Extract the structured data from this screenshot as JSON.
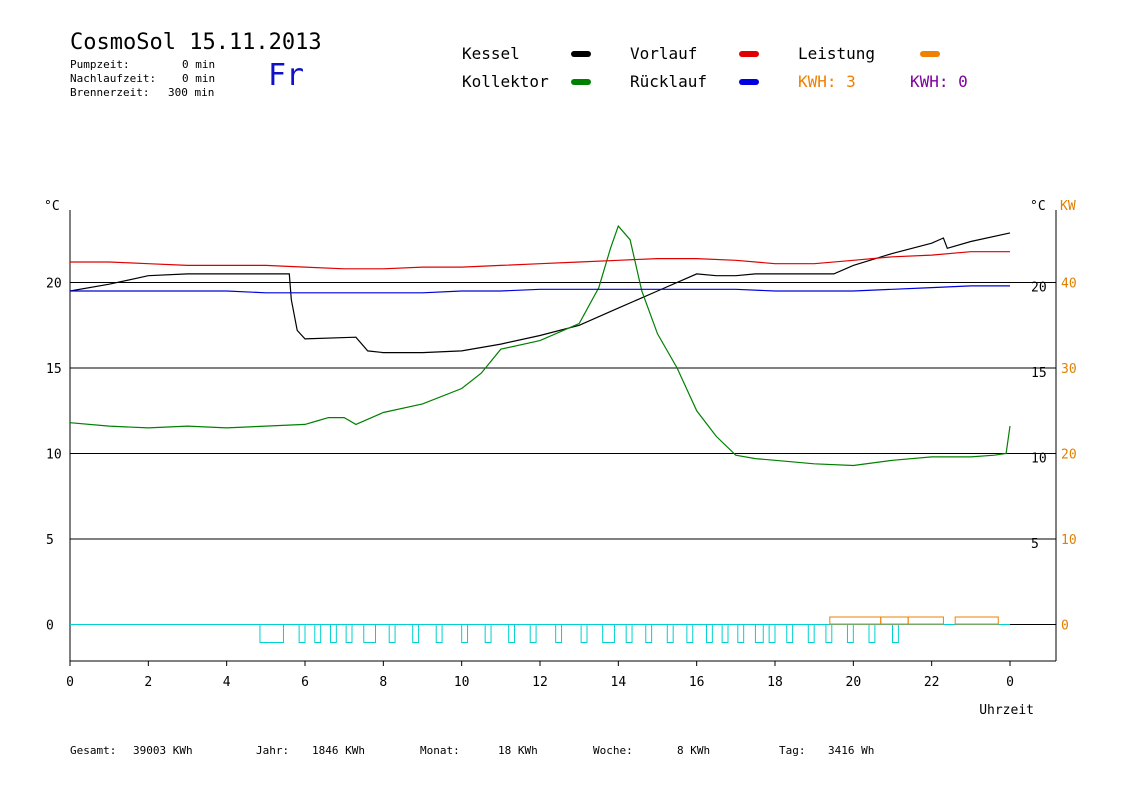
{
  "header": {
    "title": "CosmoSol 15.11.2013",
    "pump_label": "Pumpzeit:",
    "pump_value": "0 min",
    "nachlauf_label": "Nachlaufzeit:",
    "nachlauf_value": "0 min",
    "brenner_label": "Brennerzeit:",
    "brenner_value": "300 min",
    "day": "Fr"
  },
  "legend": {
    "kessel": "Kessel",
    "kollektor": "Kollektor",
    "vorlauf": "Vorlauf",
    "ruecklauf": "Rücklauf",
    "leistung": "Leistung",
    "kwh1": "KWH: 3",
    "kwh2": "KWH: 0"
  },
  "colors": {
    "kessel": "#000000",
    "kollektor": "#008000",
    "vorlauf": "#e00000",
    "ruecklauf": "#0000e0",
    "leistung": "#f08000",
    "pump": "#00d0d0",
    "kwh2": "#8000a0"
  },
  "footer": {
    "gesamt_label": "Gesamt:",
    "gesamt_value": "39003 KWh",
    "jahr_label": "Jahr:",
    "jahr_value": "1846 KWh",
    "monat_label": "Monat:",
    "monat_value": "18 KWh",
    "woche_label": "Woche:",
    "woche_value": "8 KWh",
    "tag_label": "Tag:",
    "tag_value": "3416 Wh"
  },
  "chart_data": {
    "type": "line",
    "xlabel": "Uhrzeit",
    "y_unit_left": "°C",
    "y_unit_right": "°C",
    "y2_unit": "KW",
    "x_ticks": [
      "0",
      "2",
      "4",
      "6",
      "8",
      "10",
      "12",
      "14",
      "16",
      "18",
      "20",
      "22",
      "0"
    ],
    "y_ticks": [
      0,
      5,
      10,
      15,
      20
    ],
    "y_ticks_right": [
      5,
      10,
      15,
      20
    ],
    "y2_ticks": [
      0,
      10,
      20,
      30,
      40
    ],
    "xlim": [
      0,
      24
    ],
    "ylim": [
      -2,
      25
    ],
    "grid": "horizontal",
    "series": [
      {
        "name": "Kessel",
        "color": "#000000",
        "x": [
          0,
          1,
          2,
          3,
          4,
          5,
          5.6,
          5.65,
          5.8,
          6,
          7.3,
          7.6,
          8,
          9,
          10,
          11,
          12,
          13,
          14,
          15,
          16,
          16.5,
          17,
          17.5,
          18,
          19,
          19.5,
          20,
          21,
          22,
          22.3,
          22.4,
          23,
          24
        ],
        "y": [
          19.5,
          19.9,
          20.4,
          20.5,
          20.5,
          20.5,
          20.5,
          19.0,
          17.2,
          16.7,
          16.8,
          16.0,
          15.9,
          15.9,
          16.0,
          16.4,
          16.9,
          17.5,
          18.5,
          19.5,
          20.5,
          20.4,
          20.4,
          20.5,
          20.5,
          20.5,
          20.5,
          21.0,
          21.7,
          22.3,
          22.6,
          22.0,
          22.4,
          22.9
        ]
      },
      {
        "name": "Kollektor",
        "color": "#008000",
        "x": [
          0,
          1,
          2,
          3,
          4,
          5,
          6,
          6.3,
          6.6,
          7,
          7.3,
          7.6,
          8,
          9,
          10,
          10.5,
          11,
          12,
          13,
          13.5,
          13.8,
          14,
          14.3,
          14.6,
          15,
          15.5,
          16,
          16.5,
          17,
          17.5,
          18,
          19,
          20,
          21,
          22,
          23,
          23.6,
          23.9,
          24
        ],
        "y": [
          11.8,
          11.6,
          11.5,
          11.6,
          11.5,
          11.6,
          11.7,
          11.9,
          12.1,
          12.1,
          11.7,
          12.0,
          12.4,
          12.9,
          13.8,
          14.7,
          16.1,
          16.6,
          17.6,
          19.7,
          22.0,
          23.3,
          22.5,
          19.5,
          17.0,
          15.0,
          12.5,
          11.0,
          9.9,
          9.7,
          9.6,
          9.4,
          9.3,
          9.6,
          9.8,
          9.8,
          9.9,
          10.0,
          11.6
        ]
      },
      {
        "name": "Vorlauf",
        "color": "#e00000",
        "x": [
          0,
          1,
          2,
          3,
          4,
          5,
          6,
          7,
          8,
          9,
          10,
          11,
          12,
          13,
          14,
          15,
          16,
          17,
          18,
          19,
          20,
          21,
          22,
          23,
          24
        ],
        "y": [
          21.2,
          21.2,
          21.1,
          21.0,
          21.0,
          21.0,
          20.9,
          20.8,
          20.8,
          20.9,
          20.9,
          21.0,
          21.1,
          21.2,
          21.3,
          21.4,
          21.4,
          21.3,
          21.1,
          21.1,
          21.3,
          21.5,
          21.6,
          21.8,
          21.8
        ]
      },
      {
        "name": "Rücklauf",
        "color": "#0000e0",
        "x": [
          0,
          1,
          2,
          3,
          4,
          5,
          6,
          7,
          8,
          9,
          10,
          11,
          12,
          13,
          14,
          15,
          16,
          17,
          18,
          19,
          20,
          21,
          22,
          23,
          24
        ],
        "y": [
          19.5,
          19.5,
          19.5,
          19.5,
          19.5,
          19.4,
          19.4,
          19.4,
          19.4,
          19.4,
          19.5,
          19.5,
          19.6,
          19.6,
          19.6,
          19.6,
          19.6,
          19.6,
          19.5,
          19.5,
          19.5,
          19.6,
          19.7,
          19.8,
          19.8
        ]
      }
    ],
    "pump_pulses": [
      [
        4.85,
        5.45
      ],
      [
        5.85,
        6.0
      ],
      [
        6.25,
        6.4
      ],
      [
        6.65,
        6.8
      ],
      [
        7.05,
        7.2
      ],
      [
        7.5,
        7.8
      ],
      [
        8.15,
        8.3
      ],
      [
        8.75,
        8.9
      ],
      [
        9.35,
        9.5
      ],
      [
        10.0,
        10.15
      ],
      [
        10.6,
        10.75
      ],
      [
        11.2,
        11.35
      ],
      [
        11.75,
        11.9
      ],
      [
        12.4,
        12.55
      ],
      [
        13.05,
        13.2
      ],
      [
        13.6,
        13.9
      ],
      [
        14.2,
        14.35
      ],
      [
        14.7,
        14.85
      ],
      [
        15.25,
        15.4
      ],
      [
        15.75,
        15.9
      ],
      [
        16.25,
        16.4
      ],
      [
        16.65,
        16.8
      ],
      [
        17.05,
        17.2
      ],
      [
        17.5,
        17.7
      ],
      [
        17.85,
        18.0
      ],
      [
        18.3,
        18.45
      ],
      [
        18.85,
        19.0
      ],
      [
        19.3,
        19.45
      ],
      [
        19.85,
        20.0
      ],
      [
        20.4,
        20.55
      ],
      [
        21.0,
        21.15
      ]
    ],
    "leistung_blocks": [
      [
        19.4,
        20.7
      ],
      [
        20.7,
        21.4
      ],
      [
        21.4,
        22.3
      ],
      [
        22.6,
        23.7
      ]
    ]
  }
}
